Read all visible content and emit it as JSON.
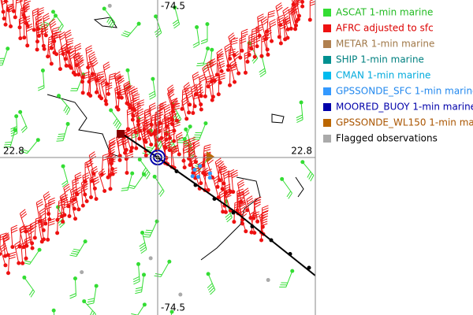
{
  "map": {
    "lon_label_top": "-74.5",
    "lon_label_bottom": "-74.5",
    "lat_label_left": "22.8",
    "lat_label_right": "22.8"
  },
  "legend": {
    "items": [
      {
        "name": "ASCAT 1-min marine",
        "color": "#33dd33",
        "text_color": "#22bb22"
      },
      {
        "name": "AFRC adjusted to sfc",
        "color": "#ee1111",
        "text_color": "#dd0000"
      },
      {
        "name": "METAR 1-min marine",
        "color": "#b08050",
        "text_color": "#a07848"
      },
      {
        "name": "SHIP 1-min marine",
        "color": "#009090",
        "text_color": "#008080"
      },
      {
        "name": "CMAN 1-min marine",
        "color": "#00bbee",
        "text_color": "#00aadd"
      },
      {
        "name": "GPSSONDE_SFC 1-min marine",
        "color": "#3399ff",
        "text_color": "#2288ee"
      },
      {
        "name": "MOORED_BUOY 1-min marine",
        "color": "#0000aa",
        "text_color": "#0000aa"
      },
      {
        "name": "GPSSONDE_WL150 1-min mar",
        "color": "#bb6600",
        "text_color": "#aa5500"
      },
      {
        "name": "Flagged observations",
        "color": "#aaaaaa",
        "text_color": "#000000"
      }
    ]
  }
}
